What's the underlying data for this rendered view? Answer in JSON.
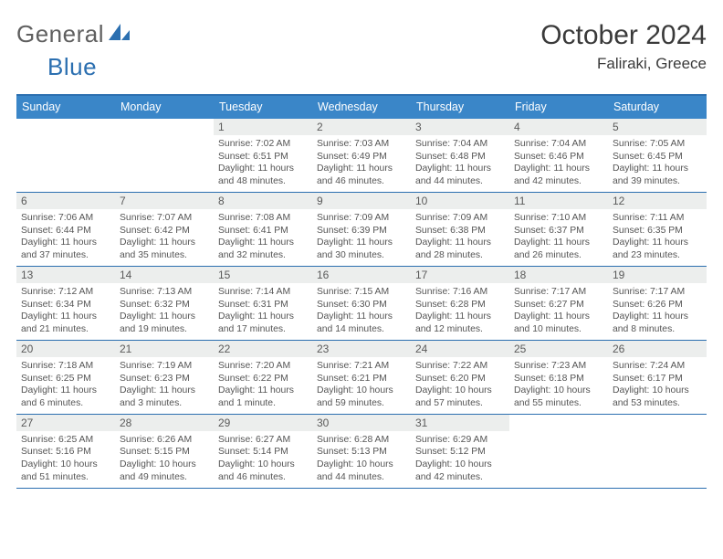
{
  "logo": {
    "part1": "General",
    "part2": "Blue",
    "mark_color": "#2b6fb0"
  },
  "header": {
    "month_title": "October 2024",
    "location": "Faliraki, Greece"
  },
  "colors": {
    "header_bg": "#3a86c8",
    "border": "#2b6fb0",
    "daynum_bg": "#eceeed",
    "text": "#555555"
  },
  "weekdays": [
    "Sunday",
    "Monday",
    "Tuesday",
    "Wednesday",
    "Thursday",
    "Friday",
    "Saturday"
  ],
  "weeks": [
    [
      {
        "blank": true
      },
      {
        "blank": true
      },
      {
        "day": "1",
        "sunrise": "7:02 AM",
        "sunset": "6:51 PM",
        "daylight": "11 hours and 48 minutes."
      },
      {
        "day": "2",
        "sunrise": "7:03 AM",
        "sunset": "6:49 PM",
        "daylight": "11 hours and 46 minutes."
      },
      {
        "day": "3",
        "sunrise": "7:04 AM",
        "sunset": "6:48 PM",
        "daylight": "11 hours and 44 minutes."
      },
      {
        "day": "4",
        "sunrise": "7:04 AM",
        "sunset": "6:46 PM",
        "daylight": "11 hours and 42 minutes."
      },
      {
        "day": "5",
        "sunrise": "7:05 AM",
        "sunset": "6:45 PM",
        "daylight": "11 hours and 39 minutes."
      }
    ],
    [
      {
        "day": "6",
        "sunrise": "7:06 AM",
        "sunset": "6:44 PM",
        "daylight": "11 hours and 37 minutes."
      },
      {
        "day": "7",
        "sunrise": "7:07 AM",
        "sunset": "6:42 PM",
        "daylight": "11 hours and 35 minutes."
      },
      {
        "day": "8",
        "sunrise": "7:08 AM",
        "sunset": "6:41 PM",
        "daylight": "11 hours and 32 minutes."
      },
      {
        "day": "9",
        "sunrise": "7:09 AM",
        "sunset": "6:39 PM",
        "daylight": "11 hours and 30 minutes."
      },
      {
        "day": "10",
        "sunrise": "7:09 AM",
        "sunset": "6:38 PM",
        "daylight": "11 hours and 28 minutes."
      },
      {
        "day": "11",
        "sunrise": "7:10 AM",
        "sunset": "6:37 PM",
        "daylight": "11 hours and 26 minutes."
      },
      {
        "day": "12",
        "sunrise": "7:11 AM",
        "sunset": "6:35 PM",
        "daylight": "11 hours and 23 minutes."
      }
    ],
    [
      {
        "day": "13",
        "sunrise": "7:12 AM",
        "sunset": "6:34 PM",
        "daylight": "11 hours and 21 minutes."
      },
      {
        "day": "14",
        "sunrise": "7:13 AM",
        "sunset": "6:32 PM",
        "daylight": "11 hours and 19 minutes."
      },
      {
        "day": "15",
        "sunrise": "7:14 AM",
        "sunset": "6:31 PM",
        "daylight": "11 hours and 17 minutes."
      },
      {
        "day": "16",
        "sunrise": "7:15 AM",
        "sunset": "6:30 PM",
        "daylight": "11 hours and 14 minutes."
      },
      {
        "day": "17",
        "sunrise": "7:16 AM",
        "sunset": "6:28 PM",
        "daylight": "11 hours and 12 minutes."
      },
      {
        "day": "18",
        "sunrise": "7:17 AM",
        "sunset": "6:27 PM",
        "daylight": "11 hours and 10 minutes."
      },
      {
        "day": "19",
        "sunrise": "7:17 AM",
        "sunset": "6:26 PM",
        "daylight": "11 hours and 8 minutes."
      }
    ],
    [
      {
        "day": "20",
        "sunrise": "7:18 AM",
        "sunset": "6:25 PM",
        "daylight": "11 hours and 6 minutes."
      },
      {
        "day": "21",
        "sunrise": "7:19 AM",
        "sunset": "6:23 PM",
        "daylight": "11 hours and 3 minutes."
      },
      {
        "day": "22",
        "sunrise": "7:20 AM",
        "sunset": "6:22 PM",
        "daylight": "11 hours and 1 minute."
      },
      {
        "day": "23",
        "sunrise": "7:21 AM",
        "sunset": "6:21 PM",
        "daylight": "10 hours and 59 minutes."
      },
      {
        "day": "24",
        "sunrise": "7:22 AM",
        "sunset": "6:20 PM",
        "daylight": "10 hours and 57 minutes."
      },
      {
        "day": "25",
        "sunrise": "7:23 AM",
        "sunset": "6:18 PM",
        "daylight": "10 hours and 55 minutes."
      },
      {
        "day": "26",
        "sunrise": "7:24 AM",
        "sunset": "6:17 PM",
        "daylight": "10 hours and 53 minutes."
      }
    ],
    [
      {
        "day": "27",
        "sunrise": "6:25 AM",
        "sunset": "5:16 PM",
        "daylight": "10 hours and 51 minutes."
      },
      {
        "day": "28",
        "sunrise": "6:26 AM",
        "sunset": "5:15 PM",
        "daylight": "10 hours and 49 minutes."
      },
      {
        "day": "29",
        "sunrise": "6:27 AM",
        "sunset": "5:14 PM",
        "daylight": "10 hours and 46 minutes."
      },
      {
        "day": "30",
        "sunrise": "6:28 AM",
        "sunset": "5:13 PM",
        "daylight": "10 hours and 44 minutes."
      },
      {
        "day": "31",
        "sunrise": "6:29 AM",
        "sunset": "5:12 PM",
        "daylight": "10 hours and 42 minutes."
      },
      {
        "blank": true
      },
      {
        "blank": true
      }
    ]
  ],
  "labels": {
    "sunrise": "Sunrise: ",
    "sunset": "Sunset: ",
    "daylight": "Daylight: "
  }
}
